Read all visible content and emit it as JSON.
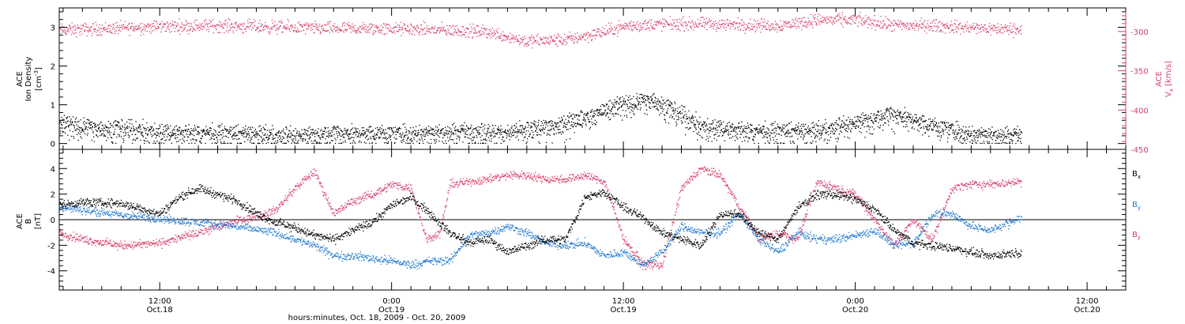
{
  "figure": {
    "xaxis_title": "hours:minutes, Oct. 18, 2009 - Oct. 20, 2009",
    "x_ticks": [
      {
        "hours": 12,
        "time": "12:00",
        "date": "Oct.18"
      },
      {
        "hours": 24,
        "time": "0:00",
        "date": "Oct.19"
      },
      {
        "hours": 36,
        "time": "12:00",
        "date": "Oct.19"
      },
      {
        "hours": 48,
        "time": "0:00",
        "date": "Oct.20"
      },
      {
        "hours": 60,
        "time": "12:00",
        "date": "Oct.20"
      }
    ],
    "colors": {
      "black": "#000000",
      "red": "#d8406a",
      "blue": "#1f78d1"
    }
  },
  "chart_data": [
    {
      "type": "scatter",
      "panel": "top",
      "x_unit": "hours since Oct. 18, 2009 00:00",
      "xlim": [
        6.8,
        62
      ],
      "data_end_hours": 56.6,
      "ylabel_left": {
        "line1": "ACE",
        "line2": "Ion Density",
        "line3": "[cm",
        "sup": "-3",
        "close": "]"
      },
      "ylabel_right": {
        "line1": "ACE",
        "base": "V",
        "sub": "x",
        "unit": "[km/s]"
      },
      "ylim_left": [
        -0.15,
        3.5
      ],
      "ylim_right": [
        -450,
        -270
      ],
      "y_ticks_left": [
        0,
        1,
        2,
        3
      ],
      "y_ticks_right": [
        -450,
        -400,
        -350,
        -300
      ],
      "series": [
        {
          "name": "Ion Density",
          "axis": "left",
          "color": "#000000",
          "knots_x": [
            6.8,
            9,
            12,
            15,
            18,
            21,
            24,
            27,
            30,
            32.5,
            33.5,
            34.5,
            35.5,
            36.5,
            37.5,
            38.5,
            40,
            43,
            46,
            48,
            50,
            52,
            54,
            56.6
          ],
          "knots_y": [
            0.55,
            0.45,
            0.35,
            0.3,
            0.25,
            0.3,
            0.3,
            0.35,
            0.35,
            0.5,
            0.65,
            0.8,
            1.0,
            1.1,
            1.2,
            0.9,
            0.5,
            0.35,
            0.35,
            0.6,
            0.8,
            0.5,
            0.3,
            0.25
          ]
        },
        {
          "name": "Vx",
          "axis": "right",
          "color": "#d8406a",
          "knots_x": [
            6.8,
            9,
            12,
            15,
            18,
            21,
            24,
            27,
            29,
            31,
            33,
            35,
            36,
            38,
            40,
            42,
            44,
            46,
            48,
            49,
            50,
            52,
            54,
            56.6
          ],
          "knots_y": [
            -298,
            -296,
            -293,
            -292,
            -294,
            -296,
            -296,
            -298,
            -300,
            -312,
            -310,
            -300,
            -293,
            -290,
            -290,
            -291,
            -292,
            -285,
            -285,
            -288,
            -292,
            -292,
            -295,
            -297
          ]
        }
      ]
    },
    {
      "type": "scatter",
      "panel": "bottom",
      "x_unit": "hours since Oct. 18, 2009 00:00",
      "xlim": [
        6.8,
        62
      ],
      "data_end_hours": 56.6,
      "ylabel": {
        "line1": "ACE",
        "line2": "B",
        "unit": "[nT]"
      },
      "ylim": [
        -5.5,
        5.5
      ],
      "y_ticks": [
        -4,
        -2,
        0,
        2,
        4
      ],
      "zero_line": true,
      "legend": [
        {
          "label": "B",
          "sub": "x",
          "color": "#000000"
        },
        {
          "label": "B",
          "sub": "y",
          "color": "#1f78d1"
        },
        {
          "label": "B",
          "sub": "z",
          "color": "#d8406a"
        }
      ],
      "series": [
        {
          "name": "Bx",
          "color": "#000000",
          "knots_x": [
            6.8,
            8,
            10,
            12,
            13,
            14,
            15,
            16,
            17,
            18,
            19,
            20,
            21,
            22,
            23,
            24,
            25,
            26,
            27,
            28,
            29,
            30,
            31,
            32,
            33,
            34,
            35,
            36,
            37,
            38,
            39,
            40,
            41,
            42,
            43,
            44,
            45,
            46,
            47,
            48,
            49,
            50,
            51,
            52,
            53,
            54,
            55,
            56.6
          ],
          "knots_y": [
            1.2,
            1.4,
            1.3,
            0.5,
            1.8,
            2.5,
            2.0,
            1.5,
            0.5,
            -0.2,
            -0.6,
            -1.2,
            -1.5,
            -0.8,
            -0.2,
            1.2,
            1.8,
            0.5,
            -1.0,
            -1.8,
            -1.5,
            -2.5,
            -2.0,
            -1.5,
            -1.5,
            1.8,
            2.2,
            1.0,
            0.2,
            -1.0,
            -1.5,
            -2.0,
            0.5,
            0.5,
            -1.0,
            -1.5,
            1.0,
            2.0,
            2.0,
            1.6,
            0.8,
            -0.8,
            -1.8,
            -2.0,
            -2.2,
            -2.5,
            -2.8,
            -2.5
          ]
        },
        {
          "name": "By",
          "color": "#1f78d1",
          "knots_x": [
            6.8,
            8,
            10,
            12,
            14,
            16,
            18,
            20,
            21,
            22,
            23,
            24,
            25,
            26,
            27,
            28,
            29,
            30,
            31,
            32,
            33,
            34,
            35,
            36,
            37,
            38,
            39,
            40,
            41,
            42,
            43,
            44,
            45,
            46,
            47,
            48,
            49,
            50,
            51,
            52,
            53,
            54,
            55,
            56.6
          ],
          "knots_y": [
            1.0,
            0.8,
            0.4,
            0.1,
            -0.2,
            -0.5,
            -1.0,
            -2.0,
            -2.8,
            -2.8,
            -3.0,
            -3.2,
            -3.5,
            -3.2,
            -3.2,
            -1.2,
            -1.0,
            -0.5,
            -1.0,
            -1.8,
            -2.0,
            -1.8,
            -2.8,
            -2.5,
            -3.5,
            -2.5,
            -0.5,
            -1.0,
            -1.0,
            0.5,
            -1.5,
            -2.5,
            -1.0,
            -1.5,
            -1.5,
            -1.2,
            -0.8,
            -2.0,
            -1.8,
            0.5,
            0.5,
            -0.5,
            -0.8,
            0.2
          ]
        },
        {
          "name": "Bz",
          "color": "#d8406a",
          "knots_x": [
            6.8,
            8,
            10,
            12,
            14,
            16,
            17,
            18,
            19,
            20,
            21,
            22,
            23,
            24,
            25,
            25.8,
            26.5,
            27,
            28,
            29,
            30,
            31,
            32,
            33,
            34,
            35,
            36,
            37,
            38,
            39,
            40,
            41,
            42,
            43,
            44,
            45,
            46,
            47,
            48,
            49,
            50,
            51,
            52,
            53,
            54,
            55,
            56.6
          ],
          "knots_y": [
            -1.0,
            -1.5,
            -2.0,
            -1.8,
            -1.0,
            0.0,
            0.3,
            0.8,
            2.5,
            3.8,
            0.5,
            1.5,
            2.0,
            2.8,
            2.5,
            -1.5,
            -1.0,
            2.8,
            3.0,
            3.2,
            3.5,
            3.5,
            3.2,
            3.2,
            3.5,
            3.0,
            -1.5,
            -3.5,
            -3.5,
            2.5,
            4.0,
            3.5,
            1.0,
            -1.5,
            -1.0,
            -1.5,
            3.0,
            2.5,
            2.0,
            0.0,
            -2.0,
            0.0,
            -1.5,
            2.5,
            2.8,
            2.8,
            3.0
          ]
        }
      ]
    }
  ]
}
